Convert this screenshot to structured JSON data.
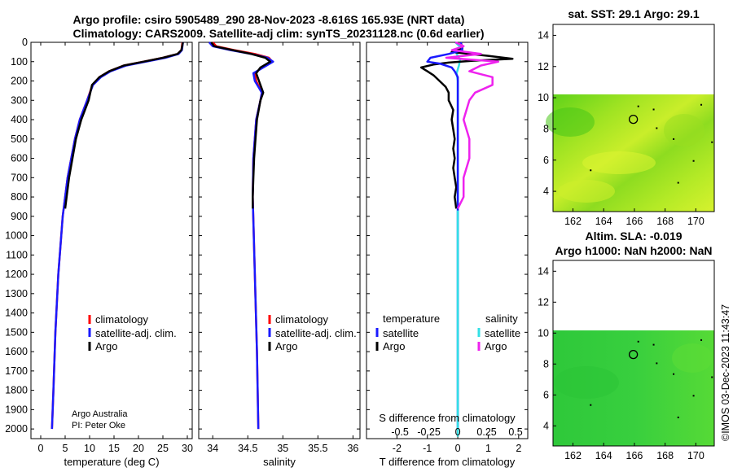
{
  "titles": {
    "line1": "Argo profile: csiro 5905489_290 28-Nov-2023 -8.616S 165.93E (NRT data)",
    "line2": "Climatology: CARS2009. Satellite-adj clim: synTS_20231128.nc (0.6d earlier)",
    "map_top": "sat. SST: 29.1 Argo: 29.1",
    "map_mid1": "Altim. SLA: -0.019",
    "map_mid2": "Argo h1000: NaN h2000: NaN",
    "timestamp": "©IMOS 03-Dec-2023 11:43:47"
  },
  "credits": {
    "line1": "Argo Australia",
    "line2": "PI: Peter Oke"
  },
  "legends": {
    "climatology": "climatology",
    "satellite_adj": "satellite-adj. clim.",
    "argo": "Argo",
    "temperature_header": "temperature",
    "salinity_header": "salinity",
    "satellite": "satellite"
  },
  "colors": {
    "climatology": "#ff0000",
    "satellite": "#1a1aff",
    "argo": "#000000",
    "sal_satellite": "#33e0e6",
    "sal_argo": "#ee22ee"
  },
  "chart_data": [
    {
      "type": "line",
      "id": "temperature",
      "xlabel": "temperature (deg C)",
      "ylabel": "",
      "xlim": [
        -2,
        31
      ],
      "ylim": [
        2050,
        0
      ],
      "xticks": [
        0,
        5,
        10,
        15,
        20,
        25,
        30
      ],
      "yticks": [
        0,
        100,
        200,
        300,
        400,
        500,
        600,
        700,
        800,
        900,
        1000,
        1100,
        1200,
        1300,
        1400,
        1500,
        1600,
        1700,
        1800,
        1900,
        2000
      ],
      "series": [
        {
          "name": "climatology",
          "depth": [
            0,
            40,
            60,
            80,
            100,
            120,
            150,
            180,
            220,
            300,
            400,
            500,
            700,
            900,
            1200,
            1500,
            1800,
            2000
          ],
          "values": [
            29,
            28.8,
            28,
            25,
            21,
            17,
            14,
            12,
            10.6,
            9.5,
            8,
            7,
            5.5,
            4.5,
            3.6,
            3,
            2.6,
            2.3
          ]
        },
        {
          "name": "satellite-adj. clim.",
          "depth": [
            0,
            40,
            60,
            80,
            100,
            120,
            150,
            180,
            220,
            300,
            400,
            500,
            700,
            900,
            1200,
            1500,
            1800,
            2000
          ],
          "values": [
            29.1,
            28.9,
            28.2,
            25.5,
            21.5,
            17.5,
            14.3,
            12.3,
            10.7,
            9.5,
            8,
            7,
            5.5,
            4.5,
            3.6,
            3,
            2.6,
            2.3
          ]
        },
        {
          "name": "Argo",
          "depth": [
            0,
            40,
            60,
            80,
            100,
            120,
            150,
            180,
            220,
            300,
            400,
            500,
            600,
            700,
            800,
            860
          ],
          "values": [
            29.1,
            28.8,
            28,
            25,
            21,
            17,
            14,
            12,
            10.5,
            9.8,
            8.3,
            7.2,
            6.5,
            5.8,
            5.3,
            5
          ]
        }
      ]
    },
    {
      "type": "line",
      "id": "salinity",
      "xlabel": "salinity",
      "xlim": [
        33.8,
        36.1
      ],
      "ylim": [
        2050,
        0
      ],
      "xticks": [
        34,
        34.5,
        35,
        35.5,
        36
      ],
      "series": [
        {
          "name": "climatology",
          "depth": [
            0,
            20,
            40,
            60,
            80,
            100,
            130,
            160,
            200,
            260,
            300,
            400,
            600,
            800,
            1200,
            1600,
            2000
          ],
          "values": [
            34.0,
            34.05,
            34.3,
            34.6,
            34.8,
            34.85,
            34.7,
            34.6,
            34.62,
            34.7,
            34.68,
            34.62,
            34.58,
            34.57,
            34.6,
            34.63,
            34.65
          ]
        },
        {
          "name": "satellite-adj. clim.",
          "depth": [
            0,
            20,
            40,
            60,
            80,
            100,
            130,
            160,
            200,
            260,
            300,
            400,
            600,
            800,
            1200,
            1600,
            2000
          ],
          "values": [
            33.95,
            34.0,
            34.25,
            34.55,
            34.78,
            34.86,
            34.72,
            34.58,
            34.6,
            34.7,
            34.68,
            34.62,
            34.58,
            34.57,
            34.6,
            34.63,
            34.65
          ]
        },
        {
          "name": "Argo",
          "depth": [
            0,
            20,
            40,
            60,
            80,
            100,
            130,
            160,
            200,
            260,
            300,
            400,
            500,
            600,
            700,
            800,
            860
          ],
          "values": [
            33.98,
            34.02,
            34.28,
            34.55,
            34.75,
            34.82,
            34.68,
            34.62,
            34.66,
            34.72,
            34.68,
            34.63,
            34.61,
            34.59,
            34.58,
            34.57,
            34.57
          ]
        }
      ]
    },
    {
      "type": "line",
      "id": "differences",
      "xlabel": "T difference from climatology",
      "xlabel_top": "S difference from climatology",
      "xlim": [
        -3,
        2.3
      ],
      "ylim": [
        2050,
        0
      ],
      "xticks": [
        -2,
        -1,
        0,
        1,
        2
      ],
      "s_xticks": [
        "-0.5",
        "-0.25",
        "0",
        "0.25",
        "0.5"
      ],
      "series": [
        {
          "name": "temperature satellite",
          "depth": [
            0,
            40,
            60,
            80,
            100,
            110,
            130,
            150,
            180,
            220,
            300,
            500,
            700,
            900,
            2000
          ],
          "values": [
            0.1,
            0.15,
            -0.3,
            -0.9,
            -1.0,
            -0.6,
            -0.2,
            -0.1,
            0.0,
            0.0,
            0.0,
            0.0,
            0.0,
            0.0,
            0.0
          ]
        },
        {
          "name": "temperature Argo",
          "depth": [
            0,
            30,
            50,
            70,
            85,
            95,
            105,
            115,
            130,
            150,
            170,
            200,
            230,
            260,
            300,
            350,
            400,
            450,
            500,
            550,
            600,
            650,
            700,
            750,
            800,
            860
          ],
          "values": [
            0.1,
            0.15,
            -0.2,
            1.0,
            1.8,
            0.5,
            -0.3,
            -0.8,
            -1.2,
            -1.0,
            -0.8,
            -0.6,
            -0.4,
            -0.3,
            -0.3,
            -0.15,
            -0.2,
            -0.15,
            -0.1,
            -0.15,
            -0.1,
            -0.15,
            -0.1,
            -0.05,
            -0.1,
            -0.05
          ]
        },
        {
          "name": "salinity satellite",
          "depth": [
            0,
            30,
            60,
            90,
            120,
            160,
            200,
            260,
            400,
            2000
          ],
          "values": [
            -0.02,
            0.03,
            -0.01,
            0.02,
            0.01,
            -0.01,
            0.0,
            0.0,
            0.0,
            0.0
          ]
        },
        {
          "name": "salinity Argo",
          "depth": [
            0,
            20,
            40,
            60,
            80,
            100,
            120,
            150,
            180,
            220,
            260,
            300,
            400,
            500,
            600,
            700,
            800,
            860
          ],
          "values": [
            -0.02,
            0.05,
            -0.05,
            0.2,
            -0.1,
            0.35,
            0.2,
            0.1,
            0.3,
            0.3,
            0.15,
            0.1,
            0.05,
            0.1,
            0.1,
            0.05,
            0.05,
            0.0
          ]
        }
      ]
    },
    {
      "type": "heatmap",
      "id": "sst_map",
      "xlim": [
        160.7,
        171.2
      ],
      "ylim": [
        2.7,
        14.7
      ],
      "xticks": [
        162,
        164,
        166,
        168,
        170
      ],
      "yticks": [
        4,
        6,
        8,
        10,
        12,
        14
      ],
      "data_extent_lat": [
        2.7,
        10.1
      ],
      "profile_location": [
        165.93,
        8.616
      ]
    },
    {
      "type": "heatmap",
      "id": "sla_map",
      "xlim": [
        160.7,
        171.2
      ],
      "ylim": [
        2.7,
        14.7
      ],
      "xticks": [
        162,
        164,
        166,
        168,
        170
      ],
      "yticks": [
        4,
        6,
        8,
        10,
        12,
        14
      ],
      "data_extent_lat": [
        2.7,
        10.1
      ],
      "profile_location": [
        165.93,
        8.616
      ]
    }
  ]
}
